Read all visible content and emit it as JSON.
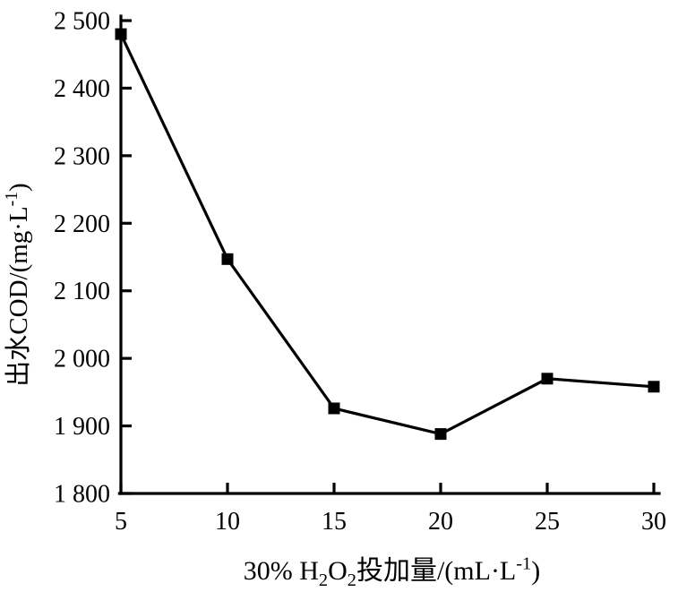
{
  "page": {
    "background": "#ffffff",
    "foreground": "#000000"
  },
  "chart_data": {
    "type": "line",
    "title": "",
    "x": [
      5,
      10,
      15,
      20,
      25,
      30
    ],
    "values": [
      2480,
      2147,
      1926,
      1888,
      1970,
      1958
    ],
    "xlabel": "30% H₂O₂投加量/(mL·L⁻¹)",
    "ylabel": "出水COD/(mg·L⁻¹)",
    "xlabel_parts": [
      {
        "t": "30% H"
      },
      {
        "t": "2",
        "sub": true
      },
      {
        "t": "O"
      },
      {
        "t": "2",
        "sub": true
      },
      {
        "t": "投加量/(mL·L"
      },
      {
        "t": "-1",
        "sup": true
      },
      {
        "t": ")"
      }
    ],
    "ylabel_parts": [
      {
        "t": "出水COD/(mg·L"
      },
      {
        "t": "-1",
        "sup": true
      },
      {
        "t": ")"
      }
    ],
    "xlim": [
      5,
      30
    ],
    "ylim": [
      1800,
      2500
    ],
    "x_ticks": [
      5,
      10,
      15,
      20,
      25,
      30
    ],
    "x_tick_labels": [
      "5",
      "10",
      "15",
      "20",
      "25",
      "30"
    ],
    "y_ticks": [
      1800,
      1900,
      2000,
      2100,
      2200,
      2300,
      2400,
      2500
    ],
    "y_tick_labels": [
      "1 800",
      "1 900",
      "2 000",
      "2 100",
      "2 200",
      "2 300",
      "2 400",
      "2 500"
    ],
    "grid": false,
    "legend_position": "none",
    "line_color": "#000000",
    "marker": "filled-square",
    "marker_color": "#000000",
    "axis_color": "#000000",
    "background": "#ffffff"
  }
}
